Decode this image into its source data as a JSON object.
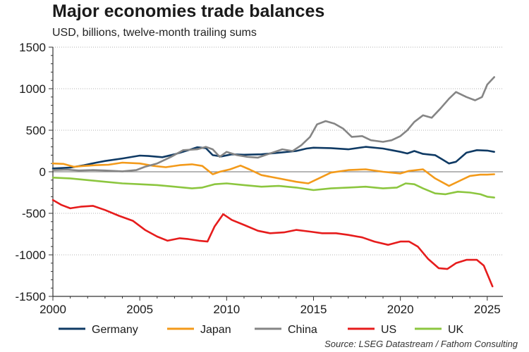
{
  "chart_data": {
    "type": "line",
    "title": "Major economies trade balances",
    "subtitle": "USD, billions, twelve-month trailing sums",
    "source": "Source: LSEG Datastream / Fathom Consulting",
    "xlabel": "",
    "ylabel": "",
    "xlim": [
      2000,
      2025.9
    ],
    "ylim": [
      -1500,
      1500
    ],
    "x_ticks": [
      2000,
      2005,
      2010,
      2015,
      2020,
      2025
    ],
    "y_ticks": [
      1500,
      1000,
      500,
      0,
      -500,
      -1000,
      -1500
    ],
    "legend_position": "bottom",
    "series": [
      {
        "name": "Germany",
        "color": "#0f3a64",
        "points": [
          [
            2000,
            40
          ],
          [
            2001,
            50
          ],
          [
            2001.8,
            80
          ],
          [
            2002.5,
            110
          ],
          [
            2003,
            130
          ],
          [
            2004,
            160
          ],
          [
            2005,
            195
          ],
          [
            2005.5,
            190
          ],
          [
            2006.3,
            175
          ],
          [
            2007,
            210
          ],
          [
            2007.8,
            260
          ],
          [
            2008.3,
            295
          ],
          [
            2008.8,
            285
          ],
          [
            2009.2,
            200
          ],
          [
            2009.7,
            185
          ],
          [
            2010.3,
            210
          ],
          [
            2011,
            205
          ],
          [
            2012,
            210
          ],
          [
            2013,
            230
          ],
          [
            2014,
            250
          ],
          [
            2014.6,
            280
          ],
          [
            2015,
            290
          ],
          [
            2016,
            285
          ],
          [
            2017,
            270
          ],
          [
            2018,
            300
          ],
          [
            2019,
            280
          ],
          [
            2019.5,
            260
          ],
          [
            2020,
            240
          ],
          [
            2020.4,
            220
          ],
          [
            2020.8,
            250
          ],
          [
            2021.3,
            215
          ],
          [
            2022,
            200
          ],
          [
            2022.4,
            150
          ],
          [
            2022.8,
            100
          ],
          [
            2023.2,
            120
          ],
          [
            2023.8,
            230
          ],
          [
            2024.4,
            260
          ],
          [
            2025,
            255
          ],
          [
            2025.4,
            240
          ]
        ]
      },
      {
        "name": "Japan",
        "color": "#f39a1a",
        "points": [
          [
            2000,
            100
          ],
          [
            2000.6,
            95
          ],
          [
            2001.2,
            60
          ],
          [
            2001.8,
            70
          ],
          [
            2002.5,
            80
          ],
          [
            2003.2,
            85
          ],
          [
            2004,
            110
          ],
          [
            2005,
            100
          ],
          [
            2005.8,
            70
          ],
          [
            2006.5,
            55
          ],
          [
            2007.3,
            80
          ],
          [
            2008,
            90
          ],
          [
            2008.6,
            70
          ],
          [
            2009.2,
            -30
          ],
          [
            2009.6,
            0
          ],
          [
            2010.2,
            30
          ],
          [
            2010.8,
            75
          ],
          [
            2011.3,
            30
          ],
          [
            2012,
            -40
          ],
          [
            2013,
            -80
          ],
          [
            2014,
            -120
          ],
          [
            2014.7,
            -140
          ],
          [
            2015.3,
            -80
          ],
          [
            2016,
            -10
          ],
          [
            2017,
            20
          ],
          [
            2018,
            30
          ],
          [
            2019,
            0
          ],
          [
            2020,
            -20
          ],
          [
            2020.5,
            10
          ],
          [
            2021.3,
            30
          ],
          [
            2022,
            -80
          ],
          [
            2022.8,
            -170
          ],
          [
            2023.4,
            -110
          ],
          [
            2024,
            -50
          ],
          [
            2024.6,
            -35
          ],
          [
            2025,
            -35
          ],
          [
            2025.4,
            -30
          ]
        ]
      },
      {
        "name": "China",
        "color": "#858585",
        "points": [
          [
            2000,
            20
          ],
          [
            2000.8,
            25
          ],
          [
            2001.5,
            15
          ],
          [
            2002.3,
            20
          ],
          [
            2003,
            15
          ],
          [
            2004,
            5
          ],
          [
            2004.8,
            20
          ],
          [
            2005.3,
            60
          ],
          [
            2006,
            100
          ],
          [
            2006.8,
            180
          ],
          [
            2007.5,
            260
          ],
          [
            2008.3,
            270
          ],
          [
            2008.8,
            300
          ],
          [
            2009.2,
            270
          ],
          [
            2009.6,
            180
          ],
          [
            2010,
            240
          ],
          [
            2010.6,
            200
          ],
          [
            2011.2,
            180
          ],
          [
            2011.8,
            170
          ],
          [
            2012.5,
            220
          ],
          [
            2013.2,
            270
          ],
          [
            2013.8,
            250
          ],
          [
            2014.3,
            320
          ],
          [
            2014.8,
            420
          ],
          [
            2015.2,
            570
          ],
          [
            2015.7,
            610
          ],
          [
            2016.2,
            580
          ],
          [
            2016.7,
            520
          ],
          [
            2017.2,
            420
          ],
          [
            2017.8,
            430
          ],
          [
            2018.3,
            380
          ],
          [
            2019,
            360
          ],
          [
            2019.5,
            380
          ],
          [
            2020,
            430
          ],
          [
            2020.4,
            500
          ],
          [
            2020.8,
            600
          ],
          [
            2021.3,
            680
          ],
          [
            2021.8,
            650
          ],
          [
            2022.3,
            760
          ],
          [
            2022.8,
            880
          ],
          [
            2023.2,
            960
          ],
          [
            2023.8,
            900
          ],
          [
            2024.3,
            860
          ],
          [
            2024.7,
            900
          ],
          [
            2025,
            1050
          ],
          [
            2025.4,
            1140
          ]
        ]
      },
      {
        "name": "US",
        "color": "#e61c1c",
        "points": [
          [
            2000,
            -340
          ],
          [
            2000.5,
            -400
          ],
          [
            2001,
            -440
          ],
          [
            2001.6,
            -420
          ],
          [
            2002.3,
            -410
          ],
          [
            2003,
            -460
          ],
          [
            2003.8,
            -530
          ],
          [
            2004.6,
            -590
          ],
          [
            2005.3,
            -700
          ],
          [
            2006,
            -780
          ],
          [
            2006.6,
            -830
          ],
          [
            2007.3,
            -800
          ],
          [
            2007.8,
            -810
          ],
          [
            2008.4,
            -830
          ],
          [
            2008.9,
            -840
          ],
          [
            2009.3,
            -660
          ],
          [
            2009.8,
            -510
          ],
          [
            2010.3,
            -580
          ],
          [
            2011,
            -640
          ],
          [
            2011.8,
            -710
          ],
          [
            2012.5,
            -740
          ],
          [
            2013.3,
            -730
          ],
          [
            2014,
            -700
          ],
          [
            2014.8,
            -720
          ],
          [
            2015.5,
            -740
          ],
          [
            2016.3,
            -740
          ],
          [
            2017,
            -760
          ],
          [
            2017.8,
            -790
          ],
          [
            2018.5,
            -840
          ],
          [
            2019.3,
            -880
          ],
          [
            2020,
            -840
          ],
          [
            2020.5,
            -840
          ],
          [
            2021,
            -900
          ],
          [
            2021.6,
            -1050
          ],
          [
            2022.2,
            -1160
          ],
          [
            2022.7,
            -1170
          ],
          [
            2023.2,
            -1100
          ],
          [
            2023.8,
            -1060
          ],
          [
            2024.4,
            -1060
          ],
          [
            2024.8,
            -1130
          ],
          [
            2025.1,
            -1280
          ],
          [
            2025.3,
            -1380
          ]
        ]
      },
      {
        "name": "UK",
        "color": "#8cc63f",
        "points": [
          [
            2000,
            -70
          ],
          [
            2001,
            -80
          ],
          [
            2002,
            -100
          ],
          [
            2003,
            -120
          ],
          [
            2004,
            -140
          ],
          [
            2005,
            -150
          ],
          [
            2006,
            -160
          ],
          [
            2007,
            -180
          ],
          [
            2008,
            -200
          ],
          [
            2008.6,
            -190
          ],
          [
            2009.3,
            -150
          ],
          [
            2010,
            -140
          ],
          [
            2011,
            -160
          ],
          [
            2012,
            -180
          ],
          [
            2013,
            -170
          ],
          [
            2014,
            -190
          ],
          [
            2015,
            -220
          ],
          [
            2016,
            -200
          ],
          [
            2017,
            -190
          ],
          [
            2018,
            -180
          ],
          [
            2019,
            -200
          ],
          [
            2019.8,
            -190
          ],
          [
            2020.3,
            -140
          ],
          [
            2020.8,
            -150
          ],
          [
            2021.3,
            -200
          ],
          [
            2022,
            -260
          ],
          [
            2022.6,
            -270
          ],
          [
            2023.3,
            -240
          ],
          [
            2024,
            -250
          ],
          [
            2024.6,
            -270
          ],
          [
            2025,
            -300
          ],
          [
            2025.4,
            -310
          ]
        ]
      }
    ]
  }
}
